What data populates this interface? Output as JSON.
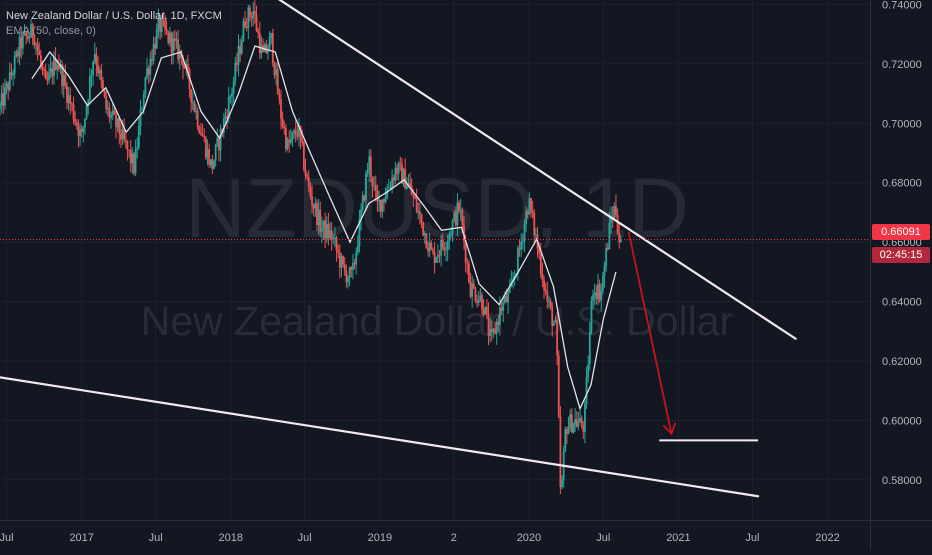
{
  "legend": {
    "symbol_line": "New Zealand Dollar / U.S. Dollar, 1D, FXCM",
    "ema_line": "EMA (50, close, 0)"
  },
  "watermark": {
    "ticker": "NZDUSD, 1D",
    "name": "New Zealand Dollar / U.S. Dollar"
  },
  "price_badge": "0.66091",
  "countdown_badge": "02:45:15",
  "colors": {
    "background": "#131722",
    "up_candle": "#26a69a",
    "down_candle": "#ef5350",
    "ema": "#e1e3e8",
    "trendline": "#f2e8f0",
    "arrow": "#c8131c",
    "price_line": "#f23645",
    "axis_text": "#b2b5be"
  },
  "chart_data": {
    "type": "candlestick",
    "symbol": "NZDUSD",
    "timeframe": "1D",
    "source": "FXCM",
    "x_axis": {
      "tick_labels": [
        "Jul",
        "2017",
        "Jul",
        "2018",
        "Jul",
        "2019",
        "2",
        "2020",
        "Jul",
        "2021",
        "Jul",
        "2022"
      ],
      "tick_dates": [
        "2016-07-01",
        "2017-01-01",
        "2017-07-01",
        "2018-01-01",
        "2018-07-01",
        "2019-01-01",
        "2019-07-01",
        "2020-01-01",
        "2020-07-01",
        "2021-01-01",
        "2021-07-01",
        "2022-01-01"
      ],
      "range": [
        "2016-06-15",
        "2022-04-15"
      ]
    },
    "y_axis": {
      "tick_labels": [
        "0.74000",
        "0.72000",
        "0.70000",
        "0.68000",
        "0.66000",
        "0.64000",
        "0.62000",
        "0.60000",
        "0.58000"
      ],
      "tick_values": [
        0.74,
        0.72,
        0.7,
        0.68,
        0.66,
        0.64,
        0.62,
        0.6,
        0.58
      ],
      "ylim": [
        0.5665,
        0.7415
      ],
      "side": "right"
    },
    "price_series": [
      [
        "2016-06-15",
        0.705
      ],
      [
        "2016-07-10",
        0.715
      ],
      [
        "2016-08-05",
        0.727
      ],
      [
        "2016-09-05",
        0.731
      ],
      [
        "2016-10-05",
        0.712
      ],
      [
        "2016-11-01",
        0.722
      ],
      [
        "2016-12-01",
        0.708
      ],
      [
        "2017-01-01",
        0.695
      ],
      [
        "2017-02-01",
        0.725
      ],
      [
        "2017-03-01",
        0.705
      ],
      [
        "2017-04-01",
        0.698
      ],
      [
        "2017-05-10",
        0.685
      ],
      [
        "2017-06-05",
        0.715
      ],
      [
        "2017-07-10",
        0.733
      ],
      [
        "2017-08-05",
        0.728
      ],
      [
        "2017-09-05",
        0.722
      ],
      [
        "2017-10-05",
        0.705
      ],
      [
        "2017-11-15",
        0.685
      ],
      [
        "2017-12-05",
        0.695
      ],
      [
        "2018-01-05",
        0.712
      ],
      [
        "2018-02-05",
        0.735
      ],
      [
        "2018-02-25",
        0.738
      ],
      [
        "2018-03-20",
        0.722
      ],
      [
        "2018-04-10",
        0.728
      ],
      [
        "2018-05-01",
        0.705
      ],
      [
        "2018-05-20",
        0.692
      ],
      [
        "2018-06-15",
        0.698
      ],
      [
        "2018-07-10",
        0.678
      ],
      [
        "2018-08-10",
        0.665
      ],
      [
        "2018-09-05",
        0.662
      ],
      [
        "2018-10-05",
        0.65
      ],
      [
        "2018-10-25",
        0.648
      ],
      [
        "2018-11-15",
        0.668
      ],
      [
        "2018-12-05",
        0.688
      ],
      [
        "2018-12-25",
        0.672
      ],
      [
        "2019-01-10",
        0.675
      ],
      [
        "2019-02-10",
        0.685
      ],
      [
        "2019-03-10",
        0.68
      ],
      [
        "2019-04-10",
        0.668
      ],
      [
        "2019-05-10",
        0.655
      ],
      [
        "2019-06-10",
        0.66
      ],
      [
        "2019-07-15",
        0.672
      ],
      [
        "2019-08-10",
        0.645
      ],
      [
        "2019-09-10",
        0.64
      ],
      [
        "2019-09-30",
        0.626
      ],
      [
        "2019-10-25",
        0.638
      ],
      [
        "2019-11-15",
        0.642
      ],
      [
        "2019-12-10",
        0.658
      ],
      [
        "2019-12-31",
        0.674
      ],
      [
        "2020-01-20",
        0.66
      ],
      [
        "2020-02-15",
        0.64
      ],
      [
        "2020-03-08",
        0.63
      ],
      [
        "2020-03-19",
        0.572
      ],
      [
        "2020-03-31",
        0.598
      ],
      [
        "2020-04-20",
        0.6
      ],
      [
        "2020-05-15",
        0.598
      ],
      [
        "2020-06-05",
        0.645
      ],
      [
        "2020-06-25",
        0.643
      ],
      [
        "2020-07-20",
        0.668
      ],
      [
        "2020-07-31",
        0.672
      ],
      [
        "2020-08-10",
        0.66
      ],
      [
        "2020-08-15",
        0.661
      ]
    ],
    "ema_50": [
      [
        "2016-09-01",
        0.715
      ],
      [
        "2016-10-15",
        0.724
      ],
      [
        "2016-11-30",
        0.716
      ],
      [
        "2017-01-15",
        0.706
      ],
      [
        "2017-03-01",
        0.712
      ],
      [
        "2017-04-20",
        0.697
      ],
      [
        "2017-06-01",
        0.704
      ],
      [
        "2017-07-15",
        0.722
      ],
      [
        "2017-09-01",
        0.724
      ],
      [
        "2017-10-20",
        0.704
      ],
      [
        "2017-12-05",
        0.695
      ],
      [
        "2018-01-20",
        0.71
      ],
      [
        "2018-03-01",
        0.726
      ],
      [
        "2018-04-20",
        0.724
      ],
      [
        "2018-06-01",
        0.704
      ],
      [
        "2018-07-15",
        0.69
      ],
      [
        "2018-09-01",
        0.675
      ],
      [
        "2018-10-20",
        0.66
      ],
      [
        "2018-12-05",
        0.673
      ],
      [
        "2019-01-20",
        0.677
      ],
      [
        "2019-03-01",
        0.681
      ],
      [
        "2019-04-20",
        0.672
      ],
      [
        "2019-06-01",
        0.664
      ],
      [
        "2019-07-20",
        0.665
      ],
      [
        "2019-09-01",
        0.646
      ],
      [
        "2019-10-20",
        0.639
      ],
      [
        "2019-12-10",
        0.651
      ],
      [
        "2020-01-20",
        0.661
      ],
      [
        "2020-03-01",
        0.645
      ],
      [
        "2020-04-05",
        0.618
      ],
      [
        "2020-05-05",
        0.604
      ],
      [
        "2020-06-01",
        0.612
      ],
      [
        "2020-07-01",
        0.634
      ],
      [
        "2020-08-01",
        0.65
      ]
    ],
    "last_price": 0.66091,
    "drawings": [
      {
        "kind": "trendline",
        "name": "upper-resistance",
        "points": [
          [
            "2018-04-15",
            0.743
          ],
          [
            "2021-10-15",
            0.6275
          ]
        ]
      },
      {
        "kind": "trendline",
        "name": "lower-support",
        "points": [
          [
            "2016-06-15",
            0.6145
          ],
          [
            "2021-07-15",
            0.5745
          ]
        ]
      },
      {
        "kind": "arrow",
        "name": "projection-arrow",
        "points": [
          [
            "2020-09-01",
            0.6635
          ],
          [
            "2020-12-15",
            0.5955
          ]
        ]
      },
      {
        "kind": "hline",
        "name": "target-level",
        "value": 0.5933,
        "from": "2020-11-15",
        "to": "2021-07-15"
      }
    ]
  }
}
